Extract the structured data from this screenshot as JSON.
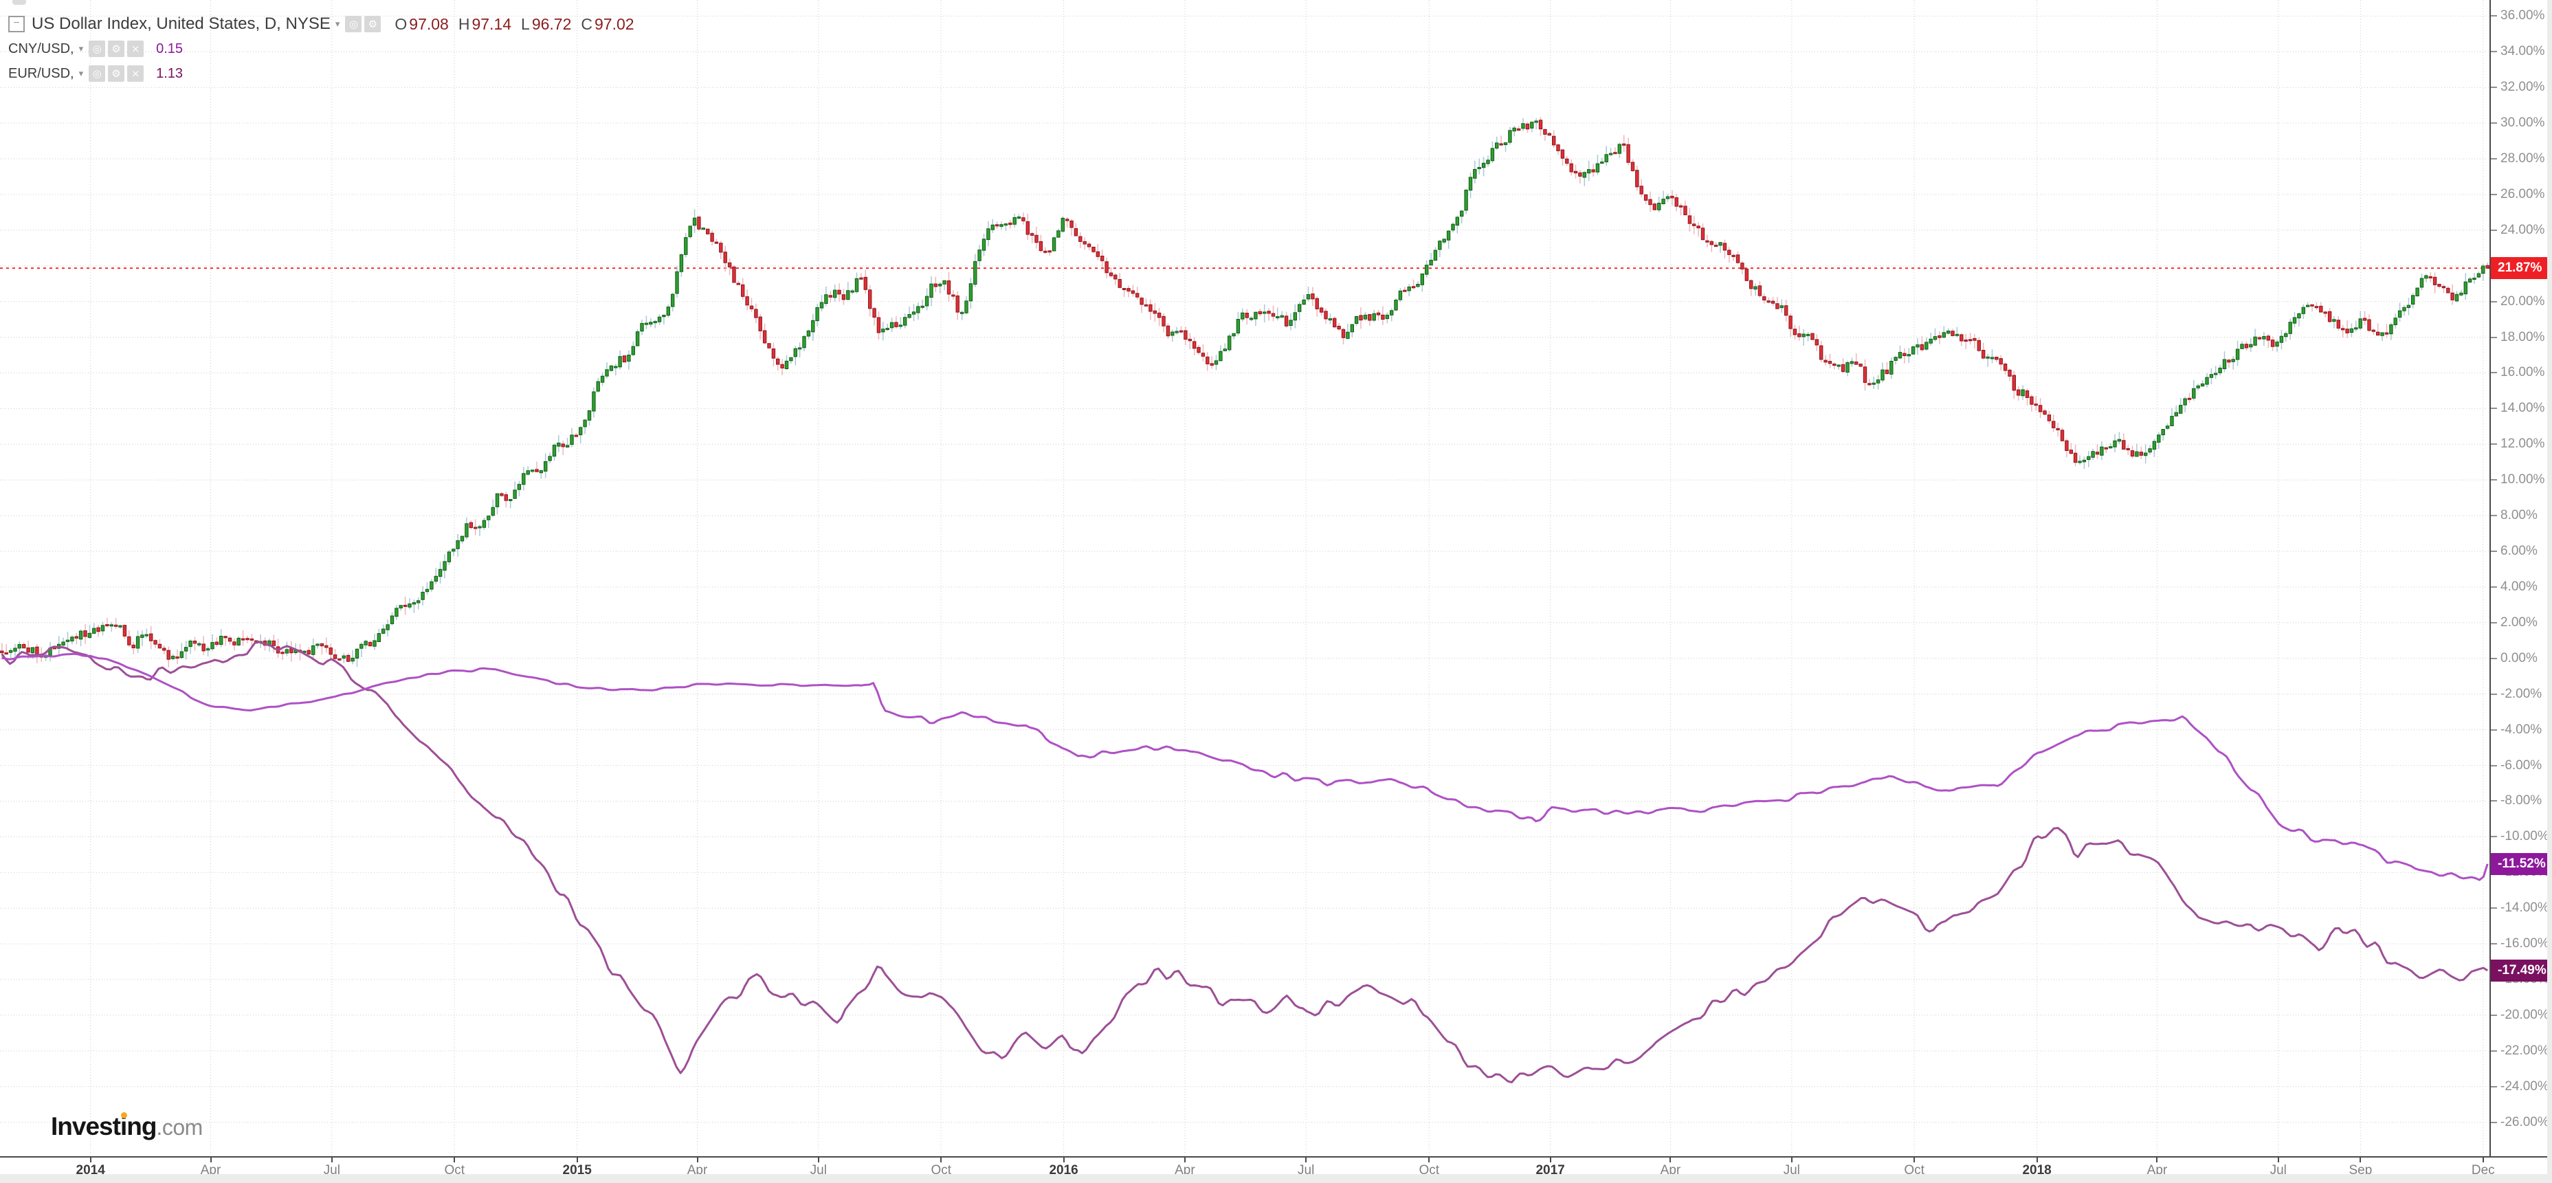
{
  "legend": {
    "title": "US Dollar Index, United States, D, NYSE",
    "dropdown_glyph": "▾",
    "collapse_glyph": "−",
    "icons": {
      "visibility": "◎",
      "settings": "⚙",
      "close": "×"
    },
    "ohlc": {
      "o_key": "O",
      "o_val": "97.08",
      "h_key": "H",
      "h_val": "97.14",
      "l_key": "L",
      "l_val": "96.72",
      "c_key": "C",
      "c_val": "97.02"
    },
    "compare": [
      {
        "label": "CNY/USD,",
        "value": "0.15",
        "value_color": "#8e189c"
      },
      {
        "label": "EUR/USD,",
        "value": "1.13",
        "value_color": "#7a1060"
      }
    ]
  },
  "badges": [
    {
      "id": "usd-index-last",
      "text": "21.87%",
      "value": 21.87,
      "color": "#ee2025"
    },
    {
      "id": "cny-usd-last",
      "text": "-11.52%",
      "value": -11.52,
      "color": "#8e189c"
    },
    {
      "id": "eur-usd-last",
      "text": "-17.49%",
      "value": -17.49,
      "color": "#7a1060"
    }
  ],
  "logo": {
    "part1": "Invest",
    "part2": "i",
    "part3": "ng",
    "suffix": ".com"
  },
  "chart_data": {
    "type": "candlestick+line",
    "title": "US Dollar Index vs CNY/USD and EUR/USD, percent change, daily",
    "y_axis": {
      "unit": "%",
      "tick_min": -26,
      "tick_max": 36,
      "tick_step": 2,
      "top_value": 36.9,
      "bottom_value": -27.9,
      "decimals": 2,
      "grid": true
    },
    "x_axis": {
      "t_min": -0.186,
      "t_max": 4.93,
      "origin": "Jan 2014 = 0, unit = years",
      "ticks": [
        {
          "label": "2014",
          "t": 0,
          "year": true
        },
        {
          "label": "Apr",
          "t": 0.247
        },
        {
          "label": "Jul",
          "t": 0.496
        },
        {
          "label": "Oct",
          "t": 0.748
        },
        {
          "label": "2015",
          "t": 1,
          "year": true
        },
        {
          "label": "Apr",
          "t": 1.247
        },
        {
          "label": "Jul",
          "t": 1.496
        },
        {
          "label": "Oct",
          "t": 1.748
        },
        {
          "label": "2016",
          "t": 2,
          "year": true
        },
        {
          "label": "Apr",
          "t": 2.249
        },
        {
          "label": "Jul",
          "t": 2.498
        },
        {
          "label": "Oct",
          "t": 2.751
        },
        {
          "label": "2017",
          "t": 3,
          "year": true
        },
        {
          "label": "Apr",
          "t": 3.247
        },
        {
          "label": "Jul",
          "t": 3.496
        },
        {
          "label": "Oct",
          "t": 3.748
        },
        {
          "label": "2018",
          "t": 4,
          "year": true
        },
        {
          "label": "Apr",
          "t": 4.247
        },
        {
          "label": "Jul",
          "t": 4.496
        },
        {
          "label": "Sep",
          "t": 4.665
        },
        {
          "label": "Dec",
          "t": 4.917
        }
      ]
    },
    "current_price_line": {
      "value": 21.87,
      "color": "#f23030",
      "style": "dotted"
    },
    "series": {
      "usd_index": {
        "name": "US Dollar Index",
        "type": "candlestick",
        "last": 21.87,
        "ohlc_current": {
          "open": 97.08,
          "high": 97.14,
          "low": 96.72,
          "close": 97.02
        },
        "up_fill": "#2f9e32",
        "up_stroke": "#0f5c12",
        "up_wick": "#a9c7d6",
        "down_fill": "#de3038",
        "down_stroke": "#8c151b",
        "down_wick": "#efb5ba",
        "anchors": [
          [
            -0.175,
            0.3
          ],
          [
            -0.09,
            0.7
          ],
          [
            0,
            1.2
          ],
          [
            0.06,
            1.7
          ],
          [
            0.12,
            0.8
          ],
          [
            0.2,
            0.3
          ],
          [
            0.28,
            0.6
          ],
          [
            0.33,
            0.9
          ],
          [
            0.42,
            0.5
          ],
          [
            0.5,
            0.2
          ],
          [
            0.58,
            1.1
          ],
          [
            0.67,
            3.2
          ],
          [
            0.75,
            6.3
          ],
          [
            0.83,
            8.6
          ],
          [
            0.92,
            10.8
          ],
          [
            1.0,
            13.2
          ],
          [
            1.08,
            16.9
          ],
          [
            1.17,
            18.9
          ],
          [
            1.2,
            21.2
          ],
          [
            1.24,
            24.6
          ],
          [
            1.28,
            23.2
          ],
          [
            1.33,
            20.8
          ],
          [
            1.38,
            18.0
          ],
          [
            1.42,
            16.9
          ],
          [
            1.5,
            19.6
          ],
          [
            1.58,
            21.6
          ],
          [
            1.62,
            18.9
          ],
          [
            1.67,
            19.4
          ],
          [
            1.75,
            20.6
          ],
          [
            1.79,
            19.2
          ],
          [
            1.83,
            23.3
          ],
          [
            1.9,
            25.2
          ],
          [
            1.95,
            22.6
          ],
          [
            2.0,
            24.7
          ],
          [
            2.08,
            22.0
          ],
          [
            2.17,
            19.3
          ],
          [
            2.25,
            17.6
          ],
          [
            2.3,
            16.7
          ],
          [
            2.37,
            18.8
          ],
          [
            2.42,
            19.9
          ],
          [
            2.46,
            18.3
          ],
          [
            2.5,
            20.5
          ],
          [
            2.58,
            18.5
          ],
          [
            2.67,
            19.4
          ],
          [
            2.75,
            22.2
          ],
          [
            2.83,
            26.3
          ],
          [
            2.9,
            28.9
          ],
          [
            2.99,
            29.8
          ],
          [
            3.03,
            27.6
          ],
          [
            3.08,
            27.2
          ],
          [
            3.15,
            28.2
          ],
          [
            3.2,
            25.7
          ],
          [
            3.25,
            25.4
          ],
          [
            3.33,
            23.3
          ],
          [
            3.42,
            20.9
          ],
          [
            3.5,
            18.4
          ],
          [
            3.58,
            16.9
          ],
          [
            3.66,
            15.8
          ],
          [
            3.75,
            17.7
          ],
          [
            3.82,
            18.7
          ],
          [
            3.87,
            17.4
          ],
          [
            3.92,
            17.1
          ],
          [
            4.0,
            13.9
          ],
          [
            4.06,
            11.9
          ],
          [
            4.1,
            11.4
          ],
          [
            4.16,
            12.4
          ],
          [
            4.22,
            11.7
          ],
          [
            4.3,
            13.9
          ],
          [
            4.37,
            16.4
          ],
          [
            4.45,
            17.6
          ],
          [
            4.5,
            18.2
          ],
          [
            4.56,
            19.5
          ],
          [
            4.62,
            18.1
          ],
          [
            4.67,
            18.7
          ],
          [
            4.7,
            17.7
          ],
          [
            4.75,
            19.9
          ],
          [
            4.83,
            21.2
          ],
          [
            4.87,
            20.5
          ],
          [
            4.925,
            21.87
          ]
        ]
      },
      "cny_usd": {
        "name": "CNY/USD",
        "type": "line",
        "color": "#ae51c4",
        "last": -11.52,
        "anchors": [
          [
            -0.175,
            0
          ],
          [
            0,
            0.2
          ],
          [
            0.08,
            -0.5
          ],
          [
            0.17,
            -1.7
          ],
          [
            0.25,
            -2.7
          ],
          [
            0.33,
            -2.9
          ],
          [
            0.42,
            -2.5
          ],
          [
            0.5,
            -2.2
          ],
          [
            0.58,
            -1.5
          ],
          [
            0.67,
            -1.0
          ],
          [
            0.75,
            -0.7
          ],
          [
            0.83,
            -0.6
          ],
          [
            0.92,
            -1.2
          ],
          [
            1.0,
            -1.6
          ],
          [
            1.08,
            -1.8
          ],
          [
            1.17,
            -1.7
          ],
          [
            1.25,
            -1.5
          ],
          [
            1.33,
            -1.4
          ],
          [
            1.42,
            -1.5
          ],
          [
            1.5,
            -1.5
          ],
          [
            1.58,
            -1.45
          ],
          [
            1.61,
            -1.5
          ],
          [
            1.63,
            -3.1
          ],
          [
            1.67,
            -3.4
          ],
          [
            1.75,
            -3.5
          ],
          [
            1.79,
            -3.1
          ],
          [
            1.83,
            -3.3
          ],
          [
            1.92,
            -3.7
          ],
          [
            1.98,
            -4.7
          ],
          [
            2.03,
            -5.6
          ],
          [
            2.08,
            -5.4
          ],
          [
            2.17,
            -5.1
          ],
          [
            2.25,
            -5.0
          ],
          [
            2.33,
            -5.7
          ],
          [
            2.42,
            -6.4
          ],
          [
            2.5,
            -6.9
          ],
          [
            2.58,
            -6.95
          ],
          [
            2.67,
            -6.95
          ],
          [
            2.75,
            -7.3
          ],
          [
            2.83,
            -8.2
          ],
          [
            2.92,
            -8.7
          ],
          [
            2.97,
            -9.2
          ],
          [
            3.0,
            -8.5
          ],
          [
            3.08,
            -8.6
          ],
          [
            3.17,
            -8.6
          ],
          [
            3.25,
            -8.5
          ],
          [
            3.33,
            -8.4
          ],
          [
            3.42,
            -8.1
          ],
          [
            3.5,
            -7.8
          ],
          [
            3.58,
            -7.2
          ],
          [
            3.67,
            -6.7
          ],
          [
            3.7,
            -6.4
          ],
          [
            3.75,
            -7.1
          ],
          [
            3.83,
            -7.5
          ],
          [
            3.92,
            -7.1
          ],
          [
            4.0,
            -5.4
          ],
          [
            4.08,
            -4.2
          ],
          [
            4.17,
            -3.8
          ],
          [
            4.25,
            -3.6
          ],
          [
            4.3,
            -3.4
          ],
          [
            4.35,
            -4.4
          ],
          [
            4.42,
            -6.6
          ],
          [
            4.5,
            -9.2
          ],
          [
            4.58,
            -10.3
          ],
          [
            4.65,
            -10.2
          ],
          [
            4.72,
            -11.3
          ],
          [
            4.78,
            -11.9
          ],
          [
            4.85,
            -12.1
          ],
          [
            4.9,
            -12.35
          ],
          [
            4.915,
            -12.4
          ],
          [
            4.925,
            -11.52
          ]
        ]
      },
      "eur_usd": {
        "name": "EUR/USD",
        "type": "line",
        "color": "#9d4f96",
        "last": -17.49,
        "anchors": [
          [
            -0.175,
            0
          ],
          [
            -0.08,
            0.4
          ],
          [
            0,
            0.1
          ],
          [
            0.08,
            -1.2
          ],
          [
            0.17,
            -0.6
          ],
          [
            0.25,
            -0.3
          ],
          [
            0.33,
            0.6
          ],
          [
            0.4,
            0.9
          ],
          [
            0.5,
            -0.4
          ],
          [
            0.58,
            -2.1
          ],
          [
            0.67,
            -4.2
          ],
          [
            0.75,
            -6.5
          ],
          [
            0.83,
            -8.8
          ],
          [
            0.92,
            -11.2
          ],
          [
            1.0,
            -14.6
          ],
          [
            1.08,
            -17.8
          ],
          [
            1.17,
            -20.8
          ],
          [
            1.21,
            -23.3
          ],
          [
            1.25,
            -21.5
          ],
          [
            1.3,
            -19.3
          ],
          [
            1.37,
            -17.9
          ],
          [
            1.42,
            -18.8
          ],
          [
            1.5,
            -19.4
          ],
          [
            1.54,
            -20.4
          ],
          [
            1.58,
            -19.0
          ],
          [
            1.62,
            -17.4
          ],
          [
            1.67,
            -18.6
          ],
          [
            1.75,
            -19.2
          ],
          [
            1.79,
            -20.1
          ],
          [
            1.83,
            -21.9
          ],
          [
            1.87,
            -22.6
          ],
          [
            1.92,
            -21.1
          ],
          [
            1.96,
            -22.0
          ],
          [
            2.0,
            -21.2
          ],
          [
            2.04,
            -22.4
          ],
          [
            2.08,
            -20.9
          ],
          [
            2.15,
            -18.2
          ],
          [
            2.2,
            -17.5
          ],
          [
            2.25,
            -17.9
          ],
          [
            2.33,
            -19.2
          ],
          [
            2.42,
            -19.7
          ],
          [
            2.46,
            -18.8
          ],
          [
            2.5,
            -19.9
          ],
          [
            2.58,
            -19.1
          ],
          [
            2.62,
            -18.3
          ],
          [
            2.67,
            -18.7
          ],
          [
            2.75,
            -19.9
          ],
          [
            2.83,
            -22.6
          ],
          [
            2.92,
            -23.8
          ],
          [
            3.0,
            -22.7
          ],
          [
            3.04,
            -23.4
          ],
          [
            3.08,
            -22.9
          ],
          [
            3.17,
            -22.3
          ],
          [
            3.25,
            -21.0
          ],
          [
            3.33,
            -19.5
          ],
          [
            3.42,
            -18.2
          ],
          [
            3.5,
            -16.8
          ],
          [
            3.58,
            -14.6
          ],
          [
            3.62,
            -13.7
          ],
          [
            3.67,
            -13.5
          ],
          [
            3.75,
            -14.6
          ],
          [
            3.79,
            -15.4
          ],
          [
            3.83,
            -14.3
          ],
          [
            3.92,
            -13.2
          ],
          [
            4.0,
            -10.2
          ],
          [
            4.04,
            -9.5
          ],
          [
            4.08,
            -10.9
          ],
          [
            4.15,
            -10.3
          ],
          [
            4.25,
            -11.7
          ],
          [
            4.33,
            -14.6
          ],
          [
            4.42,
            -15.2
          ],
          [
            4.5,
            -14.9
          ],
          [
            4.54,
            -15.5
          ],
          [
            4.58,
            -16.3
          ],
          [
            4.62,
            -15.3
          ],
          [
            4.67,
            -15.7
          ],
          [
            4.75,
            -17.3
          ],
          [
            4.79,
            -17.9
          ],
          [
            4.83,
            -17.2
          ],
          [
            4.87,
            -17.8
          ],
          [
            4.925,
            -17.49
          ]
        ]
      }
    },
    "grid_color": "#cccccc"
  }
}
